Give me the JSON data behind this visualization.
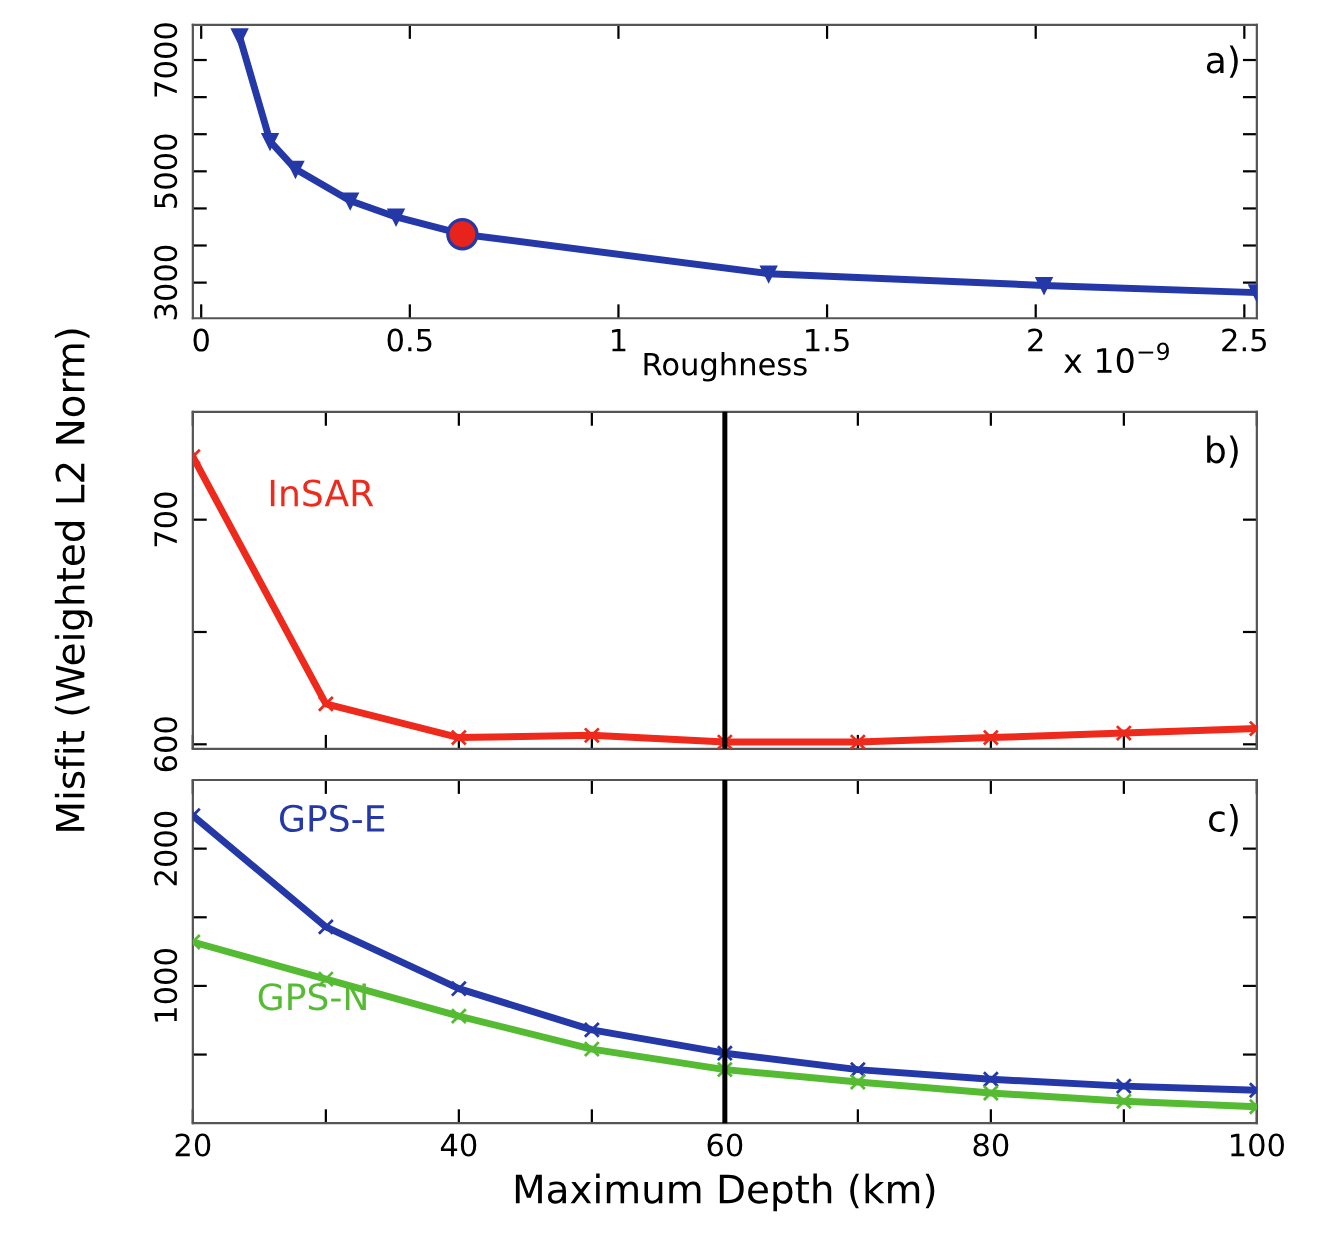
{
  "chart_data": [
    {
      "type": "line",
      "xlabel": "Roughness",
      "annotations": [
        "a)",
        "x 10$^{−9}$"
      ],
      "xlim": [
        -0.02,
        2.53
      ],
      "xticks": [
        0,
        0.5,
        1,
        1.5,
        2,
        2.5
      ],
      "ylim": [
        2360,
        7630
      ],
      "yticks": [
        3000,
        {
          "value": 3667,
          "label": null
        },
        {
          "value": 4333,
          "label": null
        },
        5000,
        {
          "value": 5667,
          "label": null
        },
        {
          "value": 6333,
          "label": null
        },
        7000
      ],
      "marker": "triangle",
      "grid": false,
      "legend": false,
      "series": [
        {
          "color": "#2438a8",
          "x": [
            0.092,
            0.165,
            0.226,
            0.357,
            0.467,
            0.626,
            1.36,
            2.02,
            2.53
          ],
          "values": [
            7420,
            5540,
            5040,
            4470,
            4180,
            3870,
            3160,
            2950,
            2820
          ]
        },
        {
          "type": "scatter",
          "marker": "circle",
          "color": "#e8231c",
          "x": [
            0.626
          ],
          "values": [
            3870
          ]
        }
      ]
    },
    {
      "type": "line",
      "ylabel": "Misfit (Weighted L2 Norm)",
      "annotations": [
        "b)"
      ],
      "tick_labels": "y",
      "x": [
        20,
        30,
        40,
        50,
        60,
        70,
        80,
        90,
        100
      ],
      "xlim": [
        20,
        100
      ],
      "xticks": [
        20,
        30,
        40,
        50,
        60,
        70,
        80,
        90,
        100
      ],
      "ylim": [
        598,
        748
      ],
      "yticks": [
        600,
        {
          "value": 650,
          "label": null
        },
        700
      ],
      "marker": "cross",
      "grid": false,
      "legend": false,
      "ref_lines": [
        {
          "axis": "x",
          "value": 60,
          "label": null,
          "color": "#000000"
        }
      ],
      "series": [
        {
          "name": "InSAR",
          "color": "#ee2a1c",
          "values": [
            728,
            618,
            603,
            604,
            601,
            601,
            603,
            605,
            607
          ]
        }
      ]
    },
    {
      "type": "line",
      "xlabel": "Maximum Depth (km)",
      "annotations": [
        "c)"
      ],
      "x": [
        20,
        30,
        40,
        50,
        60,
        70,
        80,
        90,
        100
      ],
      "xlim": [
        20,
        100
      ],
      "xticks": [
        20,
        {
          "value": 30,
          "label": null
        },
        40,
        {
          "value": 50,
          "label": null
        },
        60,
        {
          "value": 70,
          "label": null
        },
        80,
        {
          "value": 90,
          "label": null
        },
        100
      ],
      "ylim": [
        0,
        2500
      ],
      "yticks": [
        {
          "value": 500,
          "label": null
        },
        1000,
        {
          "value": 1500,
          "label": null
        },
        2000
      ],
      "marker": "cross",
      "grid": false,
      "legend": false,
      "ref_lines": [
        {
          "axis": "x",
          "value": 60,
          "label": null,
          "color": "#000000"
        }
      ],
      "series": [
        {
          "name": "GPS-E",
          "color": "#2438a8",
          "values": [
            2240,
            1430,
            980,
            680,
            510,
            390,
            320,
            270,
            240
          ]
        },
        {
          "name": "GPS-N",
          "color": "#55bb33",
          "values": [
            1320,
            1050,
            780,
            540,
            390,
            300,
            220,
            160,
            120
          ]
        }
      ]
    }
  ]
}
